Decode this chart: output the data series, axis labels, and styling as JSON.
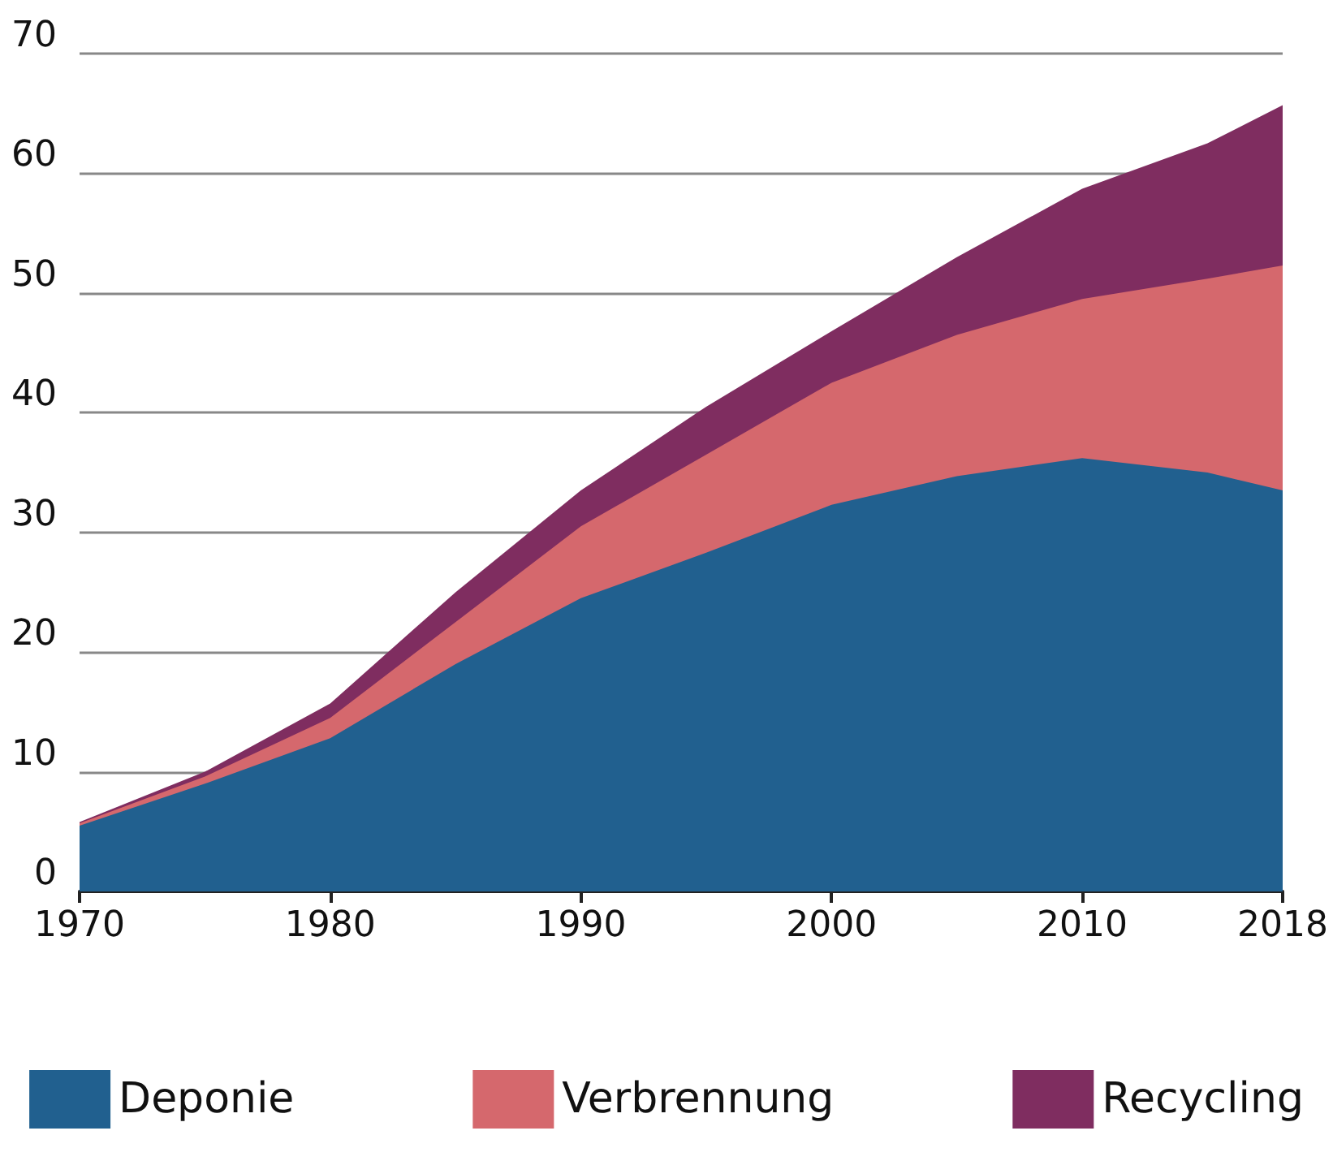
{
  "chart_data": {
    "type": "area",
    "stacked": true,
    "x": [
      1970,
      1975,
      1980,
      1985,
      1990,
      1995,
      2000,
      2005,
      2010,
      2015,
      2018
    ],
    "series": [
      {
        "name": "Deponie",
        "color": "#21608f",
        "values": [
          5.5,
          9,
          12.8,
          19,
          24.5,
          28.3,
          32.3,
          34.7,
          36.2,
          35,
          33.5
        ]
      },
      {
        "name": "Verbrennung",
        "color": "#d5686d",
        "values": [
          0.2,
          0.6,
          1.7,
          3.5,
          6,
          8.2,
          10.2,
          11.8,
          13.3,
          16.2,
          18.8
        ]
      },
      {
        "name": "Recycling",
        "color": "#7f2d60",
        "values": [
          0.1,
          0.4,
          1.2,
          2.5,
          3,
          4,
          4.3,
          6.5,
          9.2,
          11.3,
          13.4
        ]
      }
    ],
    "xlim": [
      1970,
      2018
    ],
    "xticks": [
      1970,
      1980,
      1990,
      2000,
      2010,
      2018
    ],
    "ylim": [
      0,
      70
    ],
    "yticks": [
      0,
      10,
      20,
      30,
      40,
      50,
      60,
      70
    ],
    "grid": "y",
    "legend": "bottom"
  }
}
